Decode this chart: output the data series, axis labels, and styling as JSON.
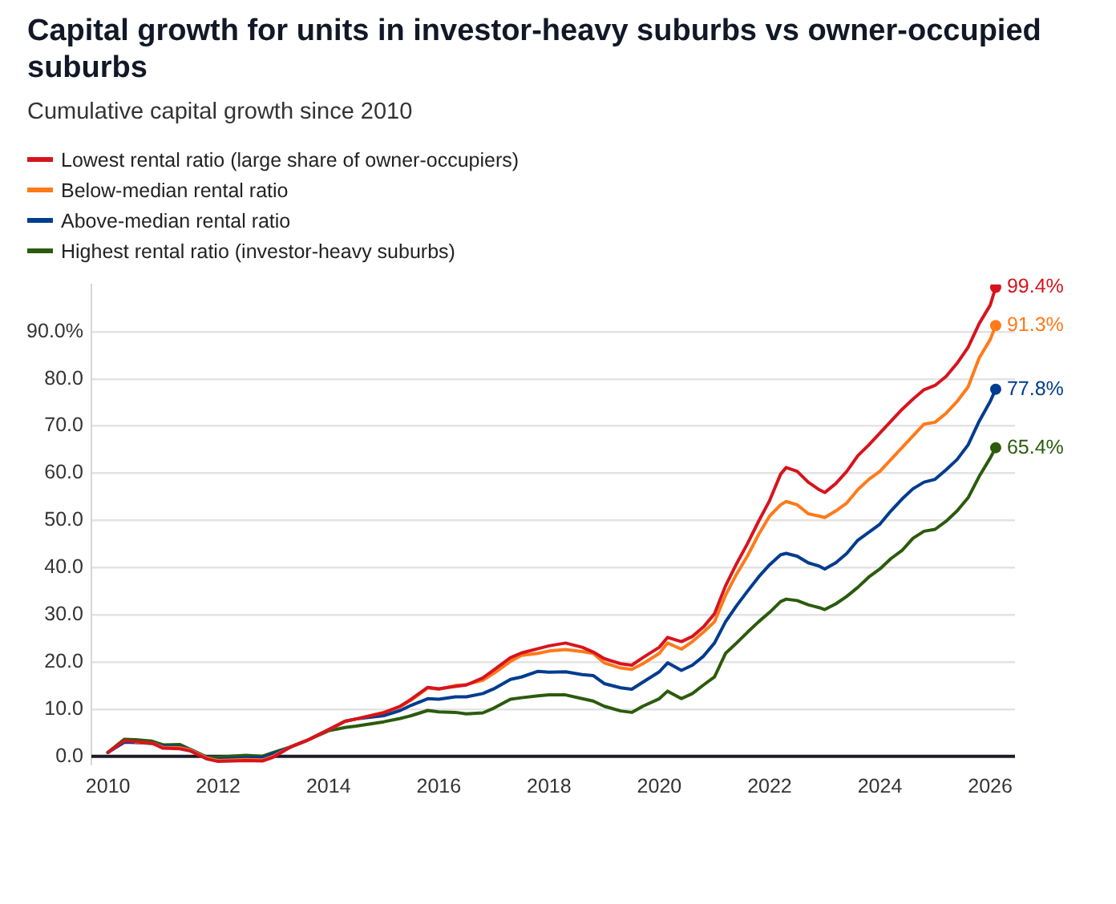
{
  "chart_data": {
    "type": "line",
    "title": "Capital growth for units in investor-heavy suburbs vs owner-occupied suburbs",
    "subtitle": "Cumulative capital growth since 2010",
    "x": [
      2010.0,
      2010.3,
      2010.5,
      2010.8,
      2011.0,
      2011.3,
      2011.5,
      2011.8,
      2012.0,
      2012.5,
      2012.8,
      2013.0,
      2013.3,
      2013.6,
      2014.0,
      2014.3,
      2014.5,
      2015.0,
      2015.3,
      2015.5,
      2015.8,
      2016.0,
      2016.3,
      2016.5,
      2016.8,
      2017.0,
      2017.3,
      2017.5,
      2017.8,
      2018.0,
      2018.3,
      2018.6,
      2018.8,
      2019.0,
      2019.3,
      2019.5,
      2019.7,
      2020.0,
      2020.15,
      2020.4,
      2020.6,
      2020.8,
      2021.0,
      2021.2,
      2021.4,
      2021.6,
      2021.8,
      2022.0,
      2022.2,
      2022.3,
      2022.5,
      2022.7,
      2022.9,
      2023.0,
      2023.2,
      2023.4,
      2023.6,
      2023.8,
      2024.0,
      2024.2,
      2024.4,
      2024.6,
      2024.8,
      2025.0,
      2025.2,
      2025.4,
      2025.6,
      2025.8,
      2026.0,
      2026.1
    ],
    "series": [
      {
        "name": "Lowest rental ratio (large share of owner-occupiers)",
        "color": "#d7141e",
        "values": [
          0.8,
          3.3,
          3.1,
          2.8,
          1.7,
          1.6,
          1.1,
          -0.6,
          -1.1,
          -0.9,
          -1.0,
          -0.2,
          1.9,
          3.3,
          5.6,
          7.4,
          7.9,
          9.2,
          10.6,
          12.1,
          14.6,
          14.3,
          14.8,
          15.1,
          16.6,
          18.3,
          20.9,
          21.9,
          22.8,
          23.4,
          24.0,
          23.1,
          22.1,
          20.7,
          19.6,
          19.3,
          20.9,
          23.1,
          25.2,
          24.3,
          25.4,
          27.4,
          30.2,
          36.1,
          40.8,
          45.1,
          49.8,
          54.2,
          59.8,
          61.2,
          60.4,
          58.1,
          56.5,
          55.9,
          57.8,
          60.4,
          63.7,
          66.0,
          68.5,
          71.0,
          73.5,
          75.7,
          77.7,
          78.6,
          80.5,
          83.3,
          86.7,
          91.7,
          95.6,
          99.4
        ],
        "value_labels": [
          null,
          null,
          null,
          null,
          null,
          null,
          null,
          null,
          null,
          null,
          null,
          null,
          null,
          null,
          null,
          null,
          null,
          null,
          null,
          null,
          null,
          null,
          null,
          null,
          null,
          null,
          null,
          null,
          null,
          null,
          null,
          null,
          null,
          null,
          null,
          null,
          null,
          null,
          null,
          null,
          null,
          null,
          null,
          null,
          null,
          null,
          null,
          null,
          null,
          null,
          null,
          null,
          null,
          null,
          null,
          null,
          null,
          null,
          null,
          null,
          null,
          null,
          null,
          null,
          null,
          null,
          null,
          null,
          null,
          "99.4%"
        ]
      },
      {
        "name": "Below-median rental ratio",
        "color": "#ff7a1a",
        "values": [
          null,
          null,
          3.0,
          2.8,
          1.9,
          1.8,
          1.3,
          -0.4,
          -0.9,
          -0.7,
          -0.8,
          0.0,
          1.9,
          3.3,
          5.6,
          7.4,
          7.9,
          9.3,
          10.5,
          11.9,
          14.5,
          14.2,
          15.0,
          15.2,
          16.1,
          17.6,
          20.1,
          21.4,
          21.8,
          22.3,
          22.6,
          22.2,
          21.8,
          19.8,
          18.7,
          18.4,
          19.6,
          21.8,
          24.0,
          22.7,
          24.3,
          26.3,
          28.5,
          34.1,
          38.6,
          42.5,
          47.0,
          50.9,
          53.3,
          54.0,
          53.3,
          51.4,
          50.9,
          50.6,
          52.0,
          53.7,
          56.5,
          58.7,
          60.4,
          62.9,
          65.4,
          67.9,
          70.4,
          70.8,
          72.7,
          75.2,
          78.3,
          84.4,
          88.3,
          91.3
        ],
        "value_labels": [
          null,
          null,
          null,
          null,
          null,
          null,
          null,
          null,
          null,
          null,
          null,
          null,
          null,
          null,
          null,
          null,
          null,
          null,
          null,
          null,
          null,
          null,
          null,
          null,
          null,
          null,
          null,
          null,
          null,
          null,
          null,
          null,
          null,
          null,
          null,
          null,
          null,
          null,
          null,
          null,
          null,
          null,
          null,
          null,
          null,
          null,
          null,
          null,
          null,
          null,
          null,
          null,
          null,
          null,
          null,
          null,
          null,
          null,
          null,
          null,
          null,
          null,
          null,
          null,
          null,
          null,
          null,
          null,
          null,
          "91.3%"
        ]
      },
      {
        "name": "Above-median rental ratio",
        "color": "#003c8f",
        "values": [
          0.8,
          3.0,
          2.9,
          2.7,
          2.2,
          2.0,
          1.4,
          -0.3,
          -0.7,
          -0.3,
          -0.3,
          0.5,
          1.9,
          3.3,
          5.6,
          7.4,
          7.9,
          8.6,
          9.7,
          10.8,
          12.2,
          12.1,
          12.6,
          12.6,
          13.3,
          14.3,
          16.3,
          16.8,
          18.0,
          17.8,
          17.9,
          17.3,
          17.1,
          15.4,
          14.5,
          14.2,
          15.7,
          17.9,
          19.8,
          18.2,
          19.3,
          21.2,
          24.0,
          28.5,
          31.9,
          35.0,
          38.0,
          40.6,
          42.7,
          43.0,
          42.4,
          41.0,
          40.3,
          39.7,
          41.0,
          43.0,
          45.8,
          47.5,
          49.2,
          52.0,
          54.5,
          56.7,
          58.1,
          58.7,
          60.7,
          62.9,
          66.0,
          71.0,
          75.2,
          77.8
        ],
        "value_labels": [
          null,
          null,
          null,
          null,
          null,
          null,
          null,
          null,
          null,
          null,
          null,
          null,
          null,
          null,
          null,
          null,
          null,
          null,
          null,
          null,
          null,
          null,
          null,
          null,
          null,
          null,
          null,
          null,
          null,
          null,
          null,
          null,
          null,
          null,
          null,
          null,
          null,
          null,
          null,
          null,
          null,
          null,
          null,
          null,
          null,
          null,
          null,
          null,
          null,
          null,
          null,
          null,
          null,
          null,
          null,
          null,
          null,
          null,
          null,
          null,
          null,
          null,
          null,
          null,
          null,
          null,
          null,
          null,
          null,
          "77.8%"
        ]
      },
      {
        "name": "Highest rental ratio (investor-heavy suburbs)",
        "color": "#2b5b0c",
        "values": [
          0.8,
          3.6,
          3.5,
          3.2,
          2.4,
          2.5,
          1.4,
          -0.2,
          -0.2,
          0.2,
          0.0,
          0.8,
          1.9,
          3.3,
          5.4,
          6.1,
          6.4,
          7.3,
          8.0,
          8.6,
          9.7,
          9.4,
          9.3,
          9.0,
          9.2,
          10.2,
          12.1,
          12.4,
          12.8,
          13.0,
          13.0,
          12.2,
          11.7,
          10.6,
          9.6,
          9.3,
          10.6,
          12.2,
          13.8,
          12.2,
          13.3,
          15.1,
          16.8,
          21.8,
          24.0,
          26.3,
          28.5,
          30.5,
          32.8,
          33.3,
          33.0,
          32.1,
          31.5,
          31.1,
          32.3,
          33.9,
          35.8,
          38.0,
          39.7,
          41.9,
          43.6,
          46.2,
          47.7,
          48.1,
          49.8,
          52.0,
          54.8,
          59.3,
          63.2,
          65.4
        ],
        "value_labels": [
          null,
          null,
          null,
          null,
          null,
          null,
          null,
          null,
          null,
          null,
          null,
          null,
          null,
          null,
          null,
          null,
          null,
          null,
          null,
          null,
          null,
          null,
          null,
          null,
          null,
          null,
          null,
          null,
          null,
          null,
          null,
          null,
          null,
          null,
          null,
          null,
          null,
          null,
          null,
          null,
          null,
          null,
          null,
          null,
          null,
          null,
          null,
          null,
          null,
          null,
          null,
          null,
          null,
          null,
          null,
          null,
          null,
          null,
          null,
          null,
          null,
          null,
          null,
          null,
          null,
          null,
          null,
          null,
          null,
          "65.4%"
        ]
      }
    ],
    "xlim": [
      2009.7,
      2026.45
    ],
    "xticks": [
      2010,
      2012,
      2014,
      2016,
      2018,
      2020,
      2022,
      2024,
      2026
    ],
    "ylim": [
      -2,
      100
    ],
    "yticks": [
      {
        "value": 0,
        "label": "0.0"
      },
      {
        "value": 10,
        "label": "10.0"
      },
      {
        "value": 20,
        "label": "20.0"
      },
      {
        "value": 30,
        "label": "30.0"
      },
      {
        "value": 40,
        "label": "40.0"
      },
      {
        "value": 50,
        "label": "50.0"
      },
      {
        "value": 60,
        "label": "60.0"
      },
      {
        "value": 70,
        "label": "70.0"
      },
      {
        "value": 80,
        "label": "80.0"
      },
      {
        "value": 90,
        "label": "90.0%"
      }
    ],
    "grid": "y",
    "legend": "top left",
    "line_style": "solid"
  }
}
